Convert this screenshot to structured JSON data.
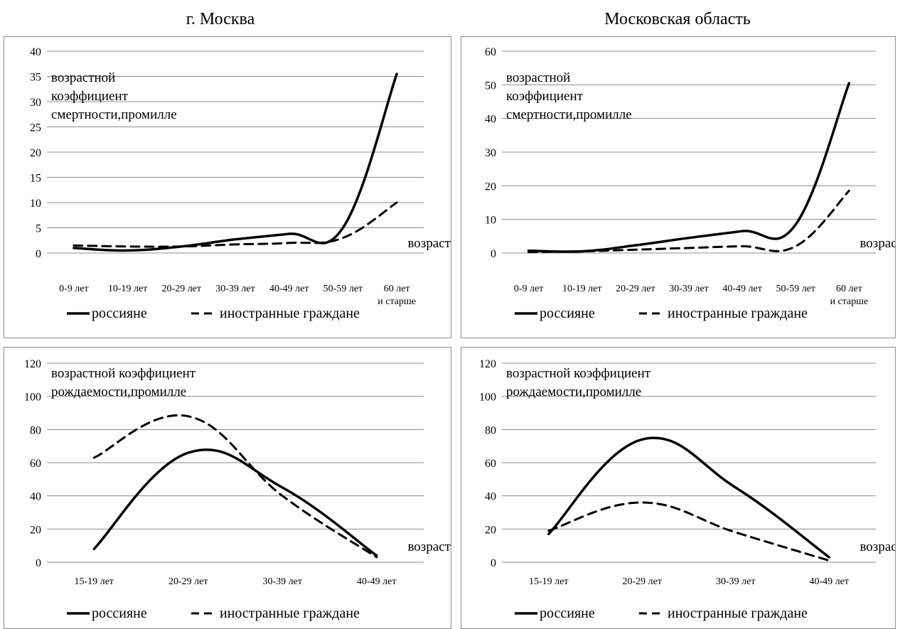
{
  "titles": {
    "left": "г. Москва",
    "right": "Московская область"
  },
  "legend": {
    "russians": "россияне",
    "foreign": "иностранные граждане"
  },
  "chart_data": [
    {
      "type": "line",
      "title": "г. Москва",
      "ylabel_lines": [
        "возрастной",
        "коэффициент",
        "смертности,промилле"
      ],
      "xlabel": "возраст",
      "categories": [
        "0-9 лет",
        "10-19 лет",
        "20-29 лет",
        "30-39 лет",
        "40-49 лет",
        "50-59 лет",
        "60 лет и старше"
      ],
      "ylim": [
        0,
        40
      ],
      "yticks": [
        0,
        5,
        10,
        15,
        20,
        25,
        30,
        35,
        40
      ],
      "series": [
        {
          "name": "россияне",
          "style": "solid",
          "values": [
            1.0,
            0.5,
            1.3,
            2.7,
            3.8,
            5.0,
            35.5
          ]
        },
        {
          "name": "иностранные граждане",
          "style": "dashed",
          "values": [
            1.5,
            1.3,
            1.3,
            1.7,
            2.0,
            3.0,
            10.0
          ]
        }
      ],
      "grid": true,
      "legend_position": "bottom"
    },
    {
      "type": "line",
      "title": "Московская область",
      "ylabel_lines": [
        "возрастной",
        "коэффициент",
        "смертности,промилле"
      ],
      "xlabel": "возраст",
      "categories": [
        "0-9 лет",
        "10-19 лет",
        "20-29 лет",
        "30-39 лет",
        "40-49 лет",
        "50-59 лет",
        "60 лет и старше"
      ],
      "ylim": [
        0,
        60
      ],
      "yticks": [
        0,
        10,
        20,
        30,
        40,
        50,
        60
      ],
      "series": [
        {
          "name": "россияне",
          "style": "solid",
          "values": [
            0.7,
            0.5,
            2.3,
            4.5,
            6.5,
            8.5,
            50.5
          ]
        },
        {
          "name": "иностранные граждане",
          "style": "dashed",
          "values": [
            0.3,
            0.5,
            1.0,
            1.5,
            2.0,
            2.0,
            18.5
          ]
        }
      ],
      "grid": true,
      "legend_position": "bottom"
    },
    {
      "type": "line",
      "ylabel_lines": [
        "возрастной коэффициент",
        "рождаемости,промилле"
      ],
      "xlabel": "возраст",
      "categories": [
        "15-19 лет",
        "20-29 лет",
        "30-39 лет",
        "40-49 лет"
      ],
      "ylim": [
        0,
        120
      ],
      "yticks": [
        0,
        20,
        40,
        60,
        80,
        100,
        120
      ],
      "series": [
        {
          "name": "россияне",
          "style": "solid",
          "values": [
            8,
            66,
            45,
            4
          ]
        },
        {
          "name": "иностранные граждане",
          "style": "dashed",
          "values": [
            63,
            88,
            40,
            3
          ]
        }
      ],
      "grid": true,
      "legend_position": "bottom"
    },
    {
      "type": "line",
      "ylabel_lines": [
        "возрастной коэффициент",
        "рождаемости,промилле"
      ],
      "xlabel": "возраст",
      "categories": [
        "15-19 лет",
        "20-29 лет",
        "30-39 лет",
        "40-49 лет"
      ],
      "ylim": [
        0,
        120
      ],
      "yticks": [
        0,
        20,
        40,
        60,
        80,
        100,
        120
      ],
      "series": [
        {
          "name": "россияне",
          "style": "solid",
          "values": [
            17,
            74,
            45,
            3
          ]
        },
        {
          "name": "иностранные граждане",
          "style": "dashed",
          "values": [
            19,
            36,
            18,
            1
          ]
        }
      ],
      "grid": true,
      "legend_position": "bottom"
    }
  ]
}
